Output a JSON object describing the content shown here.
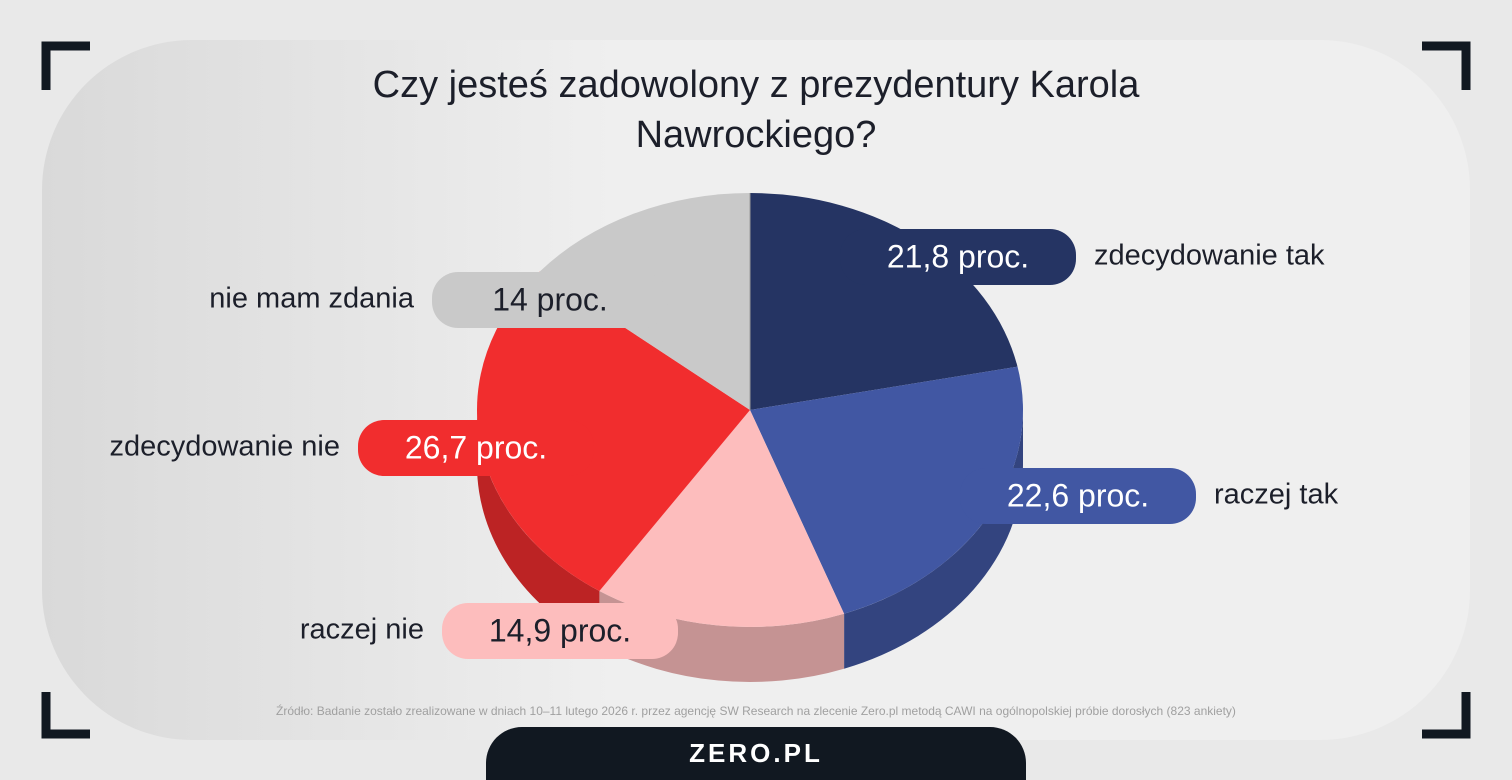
{
  "chart_data": {
    "type": "pie",
    "title": "Czy jesteś zadowolony z prezydentury Karola Nawrockiego?",
    "categories": [
      "zdecydowanie tak",
      "raczej tak",
      "raczej nie",
      "zdecydowanie nie",
      "nie mam zdania"
    ],
    "values": [
      21.8,
      22.6,
      14.9,
      26.7,
      14
    ],
    "value_labels": [
      "21,8 proc.",
      "22,6 proc.",
      "14,9 proc.",
      "26,7 proc.",
      "14 proc."
    ],
    "colors": [
      "#253463",
      "#4157a3",
      "#fdbdbd",
      "#f12d2e",
      "#c9c9c9"
    ],
    "source": "Źródło: Badanie zostało zrealizowane w dniach 10–11 lutego 2026 r. przez agencję SW Research na zlecenie Zero.pl metodą CAWI na ogólnopolskiej próbie dorosłych (823 ankiety)",
    "logo": "ZERO.PL"
  }
}
